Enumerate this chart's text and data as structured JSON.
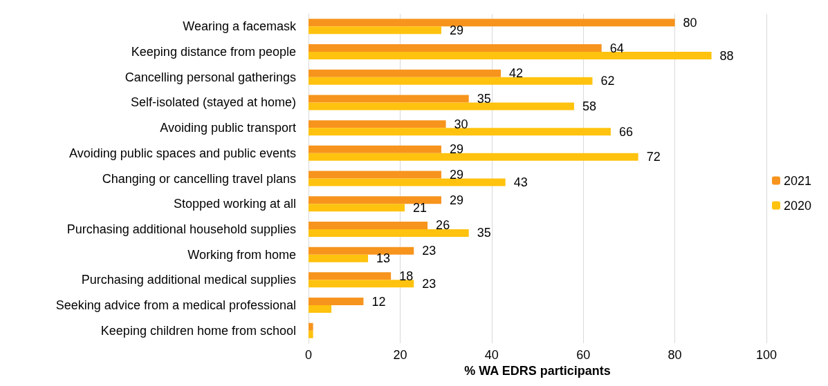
{
  "chart_data": {
    "type": "bar",
    "orientation": "horizontal",
    "xlabel": "% WA EDRS participants",
    "categories": [
      "Wearing a facemask",
      "Keeping distance from people",
      "Cancelling personal gatherings",
      "Self-isolated (stayed at home)",
      "Avoiding public transport",
      "Avoiding public spaces and public events",
      "Changing or cancelling travel plans",
      "Stopped working at all",
      "Purchasing additional household supplies",
      "Working from home",
      "Purchasing additional medical supplies",
      "Seeking advice from a medical professional",
      "Keeping children home from school"
    ],
    "series": [
      {
        "name": "2021",
        "color": "#f7941d",
        "values": [
          80,
          64,
          42,
          35,
          30,
          29,
          29,
          29,
          26,
          23,
          18,
          12,
          1
        ],
        "value_labels": [
          "80",
          "64",
          "42",
          "35",
          "30",
          "29",
          "29",
          "29",
          "26",
          "23",
          "18",
          "12",
          null
        ]
      },
      {
        "name": "2020",
        "color": "#ffc20e",
        "values": [
          29,
          88,
          62,
          58,
          66,
          72,
          43,
          21,
          35,
          13,
          23,
          5,
          1
        ],
        "value_labels": [
          "29",
          "88",
          "62",
          "58",
          "66",
          "72",
          "43",
          "21",
          "35",
          "13",
          "23",
          null,
          null
        ]
      }
    ],
    "xlim": [
      0,
      100
    ],
    "xticks": [
      0,
      20,
      40,
      60,
      80,
      100
    ],
    "grid": "x",
    "legend": "right"
  }
}
